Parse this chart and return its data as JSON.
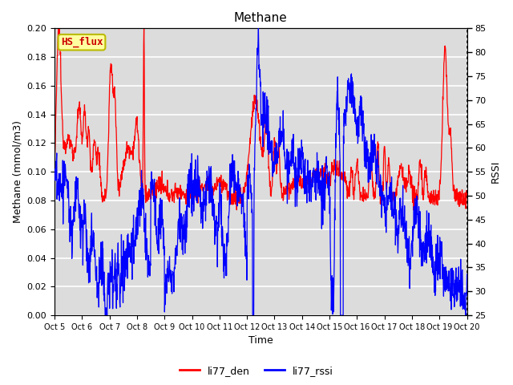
{
  "title": "Methane",
  "xlabel": "Time",
  "ylabel_left": "Methane (mmol/m3)",
  "ylabel_right": "RSSI",
  "ylim_left": [
    0.0,
    0.2
  ],
  "ylim_right": [
    25,
    85
  ],
  "yticks_left": [
    0.0,
    0.02,
    0.04,
    0.06,
    0.08,
    0.1,
    0.12,
    0.14,
    0.16,
    0.18,
    0.2
  ],
  "yticks_right": [
    25,
    30,
    35,
    40,
    45,
    50,
    55,
    60,
    65,
    70,
    75,
    80,
    85
  ],
  "xtick_labels": [
    "Oct 5",
    "Oct 6",
    "Oct 7",
    "Oct 8",
    "Oct 9",
    "Oct 10",
    "Oct 11",
    "Oct 12",
    "Oct 13",
    "Oct 14",
    "Oct 15",
    "Oct 16",
    "Oct 17",
    "Oct 18",
    "Oct 19",
    "Oct 20"
  ],
  "legend_labels": [
    "li77_den",
    "li77_rssi"
  ],
  "legend_colors": [
    "red",
    "blue"
  ],
  "hs_flux_box_color": "#FFFFA0",
  "hs_flux_edge_color": "#BBBB00",
  "hs_flux_text_color": "#CC0000",
  "bg_color": "#DCDCDC",
  "line_color_red": "red",
  "line_color_blue": "blue"
}
